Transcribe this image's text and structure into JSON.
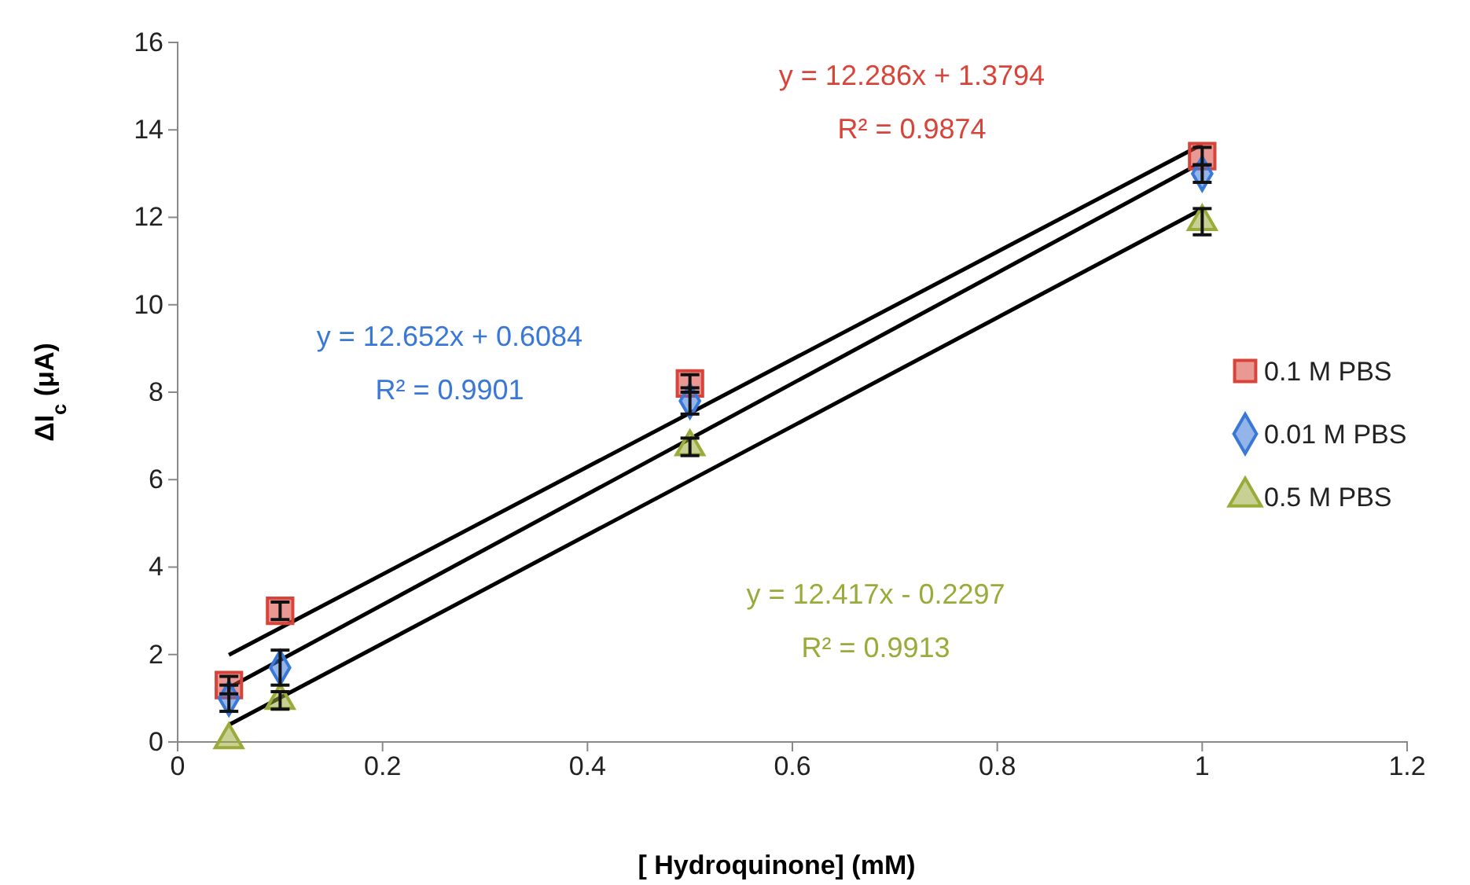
{
  "chart_data": {
    "type": "scatter",
    "xlabel": "[ Hydroquinone] (mM)",
    "ylabel": "ΔI$_{c}$ (μA)",
    "xlim": [
      0,
      1.2
    ],
    "xticks": [
      0,
      0.2,
      0.4,
      0.6,
      0.8,
      1,
      1.2
    ],
    "ylim": [
      0,
      16
    ],
    "yticks": [
      0,
      2,
      4,
      6,
      8,
      10,
      12,
      14,
      16
    ],
    "grid": false,
    "legend": "right",
    "series": [
      {
        "name": "0.1 M PBS",
        "marker": "square",
        "color": "#d9443a",
        "x": [
          0.05,
          0.1,
          0.5,
          1
        ],
        "values": [
          1.3,
          3.0,
          8.2,
          13.4
        ],
        "errors": [
          0.2,
          0.2,
          0.2,
          0.2
        ]
      },
      {
        "name": "0.01 M PBS",
        "marker": "diamond",
        "color": "#3a78d8",
        "x": [
          0.05,
          0.1,
          0.5,
          1
        ],
        "values": [
          1.0,
          1.7,
          7.8,
          13.0
        ],
        "errors": [
          0.3,
          0.4,
          0.3,
          0.2
        ]
      },
      {
        "name": "0.5 M PBS",
        "marker": "triangle",
        "color": "#9aab3a",
        "x": [
          0.05,
          0.1,
          0.5,
          1
        ],
        "values": [
          0.05,
          0.95,
          6.75,
          11.9
        ],
        "errors": [
          null,
          0.2,
          0.2,
          0.3
        ]
      },
      {
        "type": "line",
        "marker": "none",
        "color": "#000000",
        "x": [
          0.05,
          1
        ],
        "values": [
          1.99,
          13.67
        ]
      },
      {
        "type": "line",
        "marker": "none",
        "color": "#000000",
        "x": [
          0.05,
          1
        ],
        "values": [
          1.24,
          13.26
        ]
      },
      {
        "type": "line",
        "marker": "none",
        "color": "#000000",
        "x": [
          0.05,
          1
        ],
        "values": [
          0.39,
          12.19
        ]
      }
    ],
    "annotations": [
      "y = 12.286x + 1.3794",
      "R² = 0.9874",
      "y = 12.652x + 0.6084",
      "R² = 0.9901",
      "y = 12.417x - 0.2297",
      "R² = 0.9913"
    ]
  }
}
